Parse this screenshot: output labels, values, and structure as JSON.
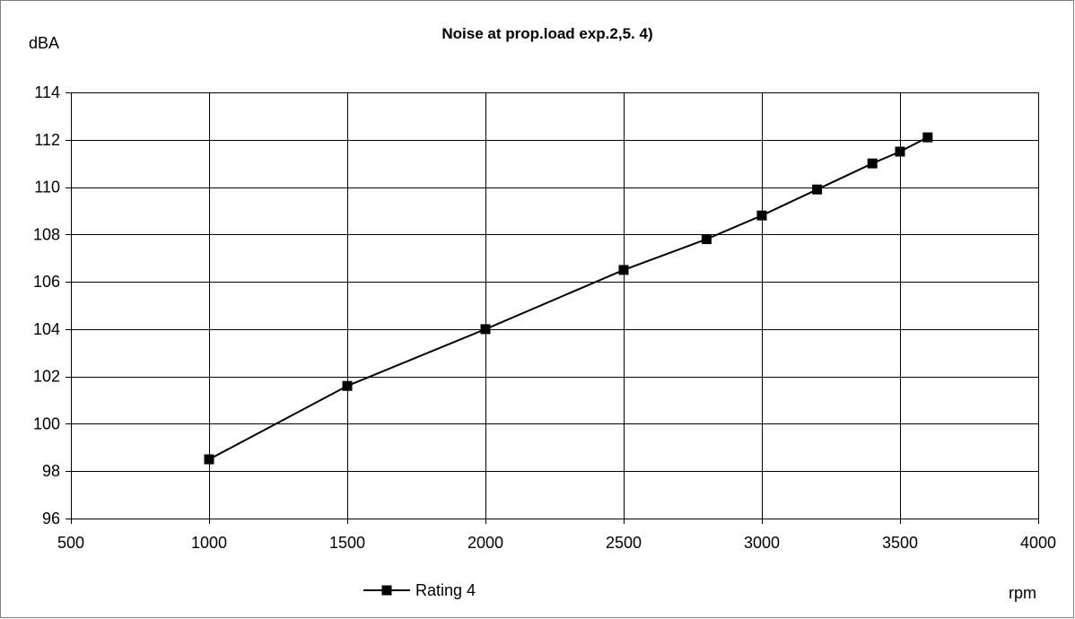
{
  "chart_data": {
    "type": "line",
    "title": "Noise at prop.load exp.2,5. 4)",
    "ylabel": "dBA",
    "xlabel": "rpm",
    "xlim": [
      500,
      4000
    ],
    "ylim": [
      96,
      114
    ],
    "x_ticks": [
      500,
      1000,
      1500,
      2000,
      2500,
      3000,
      3500,
      4000
    ],
    "y_ticks": [
      96,
      98,
      100,
      102,
      104,
      106,
      108,
      110,
      112,
      114
    ],
    "grid": true,
    "legend_position": "bottom",
    "series": [
      {
        "name": "Rating  4",
        "color": "#000000",
        "marker": "square",
        "x": [
          1000,
          1500,
          2000,
          2500,
          2800,
          3000,
          3200,
          3400,
          3500,
          3600
        ],
        "y": [
          98.5,
          101.6,
          104.0,
          106.5,
          107.8,
          108.8,
          109.9,
          111.0,
          111.5,
          112.1
        ]
      }
    ]
  }
}
